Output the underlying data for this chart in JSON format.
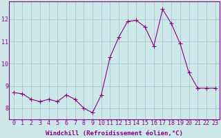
{
  "x": [
    0,
    1,
    2,
    3,
    4,
    5,
    6,
    7,
    8,
    9,
    10,
    11,
    12,
    13,
    14,
    15,
    16,
    17,
    18,
    19,
    20,
    21,
    22,
    23
  ],
  "y": [
    8.7,
    8.65,
    8.4,
    8.3,
    8.4,
    8.3,
    8.6,
    8.4,
    8.0,
    7.8,
    8.6,
    10.3,
    11.2,
    11.9,
    11.95,
    11.65,
    10.8,
    12.45,
    11.8,
    10.9,
    9.6,
    8.9,
    8.9,
    8.9
  ],
  "line_color": "#880088",
  "marker": "+",
  "marker_size": 4,
  "line_width": 0.8,
  "background_color": "#cce8e8",
  "grid_color": "#aabbcc",
  "xlabel": "Windchill (Refroidissement éolien,°C)",
  "xlabel_color": "#880088",
  "xlabel_fontsize": 6.5,
  "tick_color": "#880088",
  "tick_fontsize": 6,
  "ylim": [
    7.5,
    12.8
  ],
  "yticks": [
    8,
    9,
    10,
    11,
    12
  ],
  "xticks": [
    0,
    1,
    2,
    3,
    4,
    5,
    6,
    7,
    8,
    9,
    10,
    11,
    12,
    13,
    14,
    15,
    16,
    17,
    18,
    19,
    20,
    21,
    22,
    23
  ]
}
